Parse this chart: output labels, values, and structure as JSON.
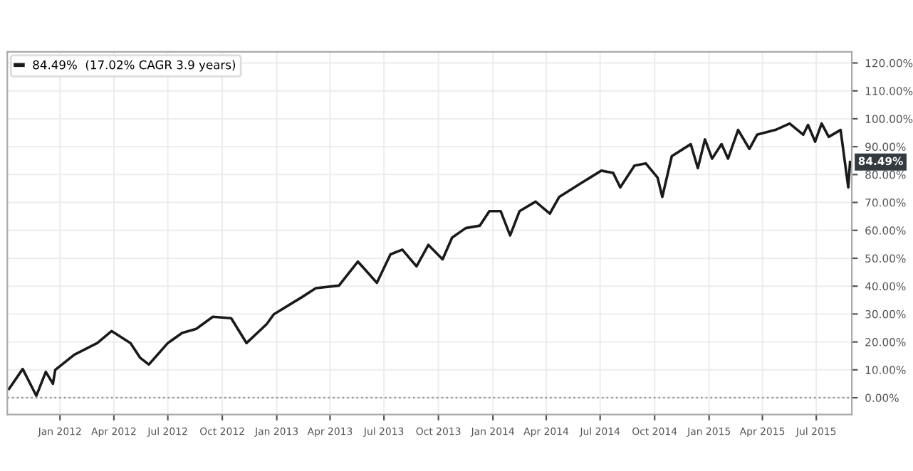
{
  "chart_data": {
    "type": "line",
    "x": [
      "2011-10-07",
      "2011-10-30",
      "2011-11-22",
      "2011-12-08",
      "2011-12-20",
      "2011-12-24",
      "2012-01-25",
      "2012-03-04",
      "2012-03-28",
      "2012-04-29",
      "2012-05-15",
      "2012-05-30",
      "2012-07-01",
      "2012-07-25",
      "2012-08-18",
      "2012-09-15",
      "2012-10-16",
      "2012-11-11",
      "2012-12-15",
      "2012-12-27",
      "2013-02-12",
      "2013-03-08",
      "2013-04-16",
      "2013-05-18",
      "2013-06-19",
      "2013-07-12",
      "2013-08-01",
      "2013-08-25",
      "2013-09-14",
      "2013-10-08",
      "2013-10-24",
      "2013-11-16",
      "2013-12-10",
      "2013-12-26",
      "2014-01-14",
      "2014-01-30",
      "2014-02-15",
      "2014-03-14",
      "2014-04-07",
      "2014-04-23",
      "2014-06-01",
      "2014-07-03",
      "2014-07-23",
      "2014-08-04",
      "2014-08-28",
      "2014-09-16",
      "2014-10-06",
      "2014-10-14",
      "2014-10-30",
      "2014-12-01",
      "2014-12-13",
      "2014-12-25",
      "2015-01-06",
      "2015-01-22",
      "2015-02-02",
      "2015-02-19",
      "2015-03-10",
      "2015-03-23",
      "2015-04-23",
      "2015-05-17",
      "2015-06-09",
      "2015-06-17",
      "2015-06-29",
      "2015-07-10",
      "2015-07-22",
      "2015-08-11",
      "2015-08-24",
      "2015-08-27"
    ],
    "series": [
      {
        "name": "84.49%  (17.02% CAGR 3.9 years)",
        "color": "#1a1a1a",
        "values": [
          3.2,
          10.3,
          0.7,
          9.3,
          5,
          10,
          15.4,
          19.6,
          23.9,
          19.6,
          14.4,
          11.9,
          19.6,
          23.2,
          24.7,
          29,
          28.5,
          19.6,
          26.4,
          29.9,
          36,
          39.3,
          40.2,
          48.8,
          41.2,
          51.4,
          53.1,
          47.1,
          54.8,
          49.6,
          57.4,
          60.8,
          61.7,
          66.9,
          66.9,
          58.2,
          66.9,
          70.3,
          66,
          72,
          77.2,
          81.4,
          80.6,
          75.4,
          83.2,
          84,
          78.9,
          72,
          86.6,
          90.9,
          82.3,
          92.6,
          85.7,
          90.9,
          85.7,
          96,
          89.2,
          94.3,
          96,
          98.3,
          94.3,
          97.8,
          91.8,
          98.3,
          93.5,
          96,
          75.4,
          84.49
        ]
      }
    ],
    "xlim": [
      "2011-10-04",
      "2015-08-30"
    ],
    "xticks": [
      {
        "value": "2012-01-01",
        "label": "Jan 2012"
      },
      {
        "value": "2012-04-01",
        "label": "Apr 2012"
      },
      {
        "value": "2012-07-01",
        "label": "Jul 2012"
      },
      {
        "value": "2012-10-01",
        "label": "Oct 2012"
      },
      {
        "value": "2013-01-01",
        "label": "Jan 2013"
      },
      {
        "value": "2013-04-01",
        "label": "Apr 2013"
      },
      {
        "value": "2013-07-01",
        "label": "Jul 2013"
      },
      {
        "value": "2013-10-01",
        "label": "Oct 2013"
      },
      {
        "value": "2014-01-01",
        "label": "Jan 2014"
      },
      {
        "value": "2014-04-01",
        "label": "Apr 2014"
      },
      {
        "value": "2014-07-01",
        "label": "Jul 2014"
      },
      {
        "value": "2014-10-01",
        "label": "Oct 2014"
      },
      {
        "value": "2015-01-01",
        "label": "Jan 2015"
      },
      {
        "value": "2015-04-01",
        "label": "Apr 2015"
      },
      {
        "value": "2015-07-01",
        "label": "Jul 2015"
      }
    ],
    "ylim": [
      -6,
      124
    ],
    "yticks": [
      {
        "value": 0,
        "label": "0.00%"
      },
      {
        "value": 10,
        "label": "10.00%"
      },
      {
        "value": 20,
        "label": "20.00%"
      },
      {
        "value": 30,
        "label": "30.00%"
      },
      {
        "value": 40,
        "label": "40.00%"
      },
      {
        "value": 50,
        "label": "50.00%"
      },
      {
        "value": 60,
        "label": "60.00%"
      },
      {
        "value": 70,
        "label": "70.00%"
      },
      {
        "value": 80,
        "label": "80.00%"
      },
      {
        "value": 90,
        "label": "90.00%"
      },
      {
        "value": 100,
        "label": "100.00%"
      },
      {
        "value": 110,
        "label": "110.00%"
      },
      {
        "value": 120,
        "label": "120.00%"
      }
    ],
    "ref_lines": [
      {
        "axis": "y",
        "value": 0,
        "color": "#999999",
        "line_style": "dotted"
      }
    ],
    "annotations": [
      {
        "text": "84.49%",
        "x": "2015-08-27",
        "y": 84.49
      }
    ],
    "grid": true,
    "legend": "top left",
    "line_style": "solid"
  }
}
